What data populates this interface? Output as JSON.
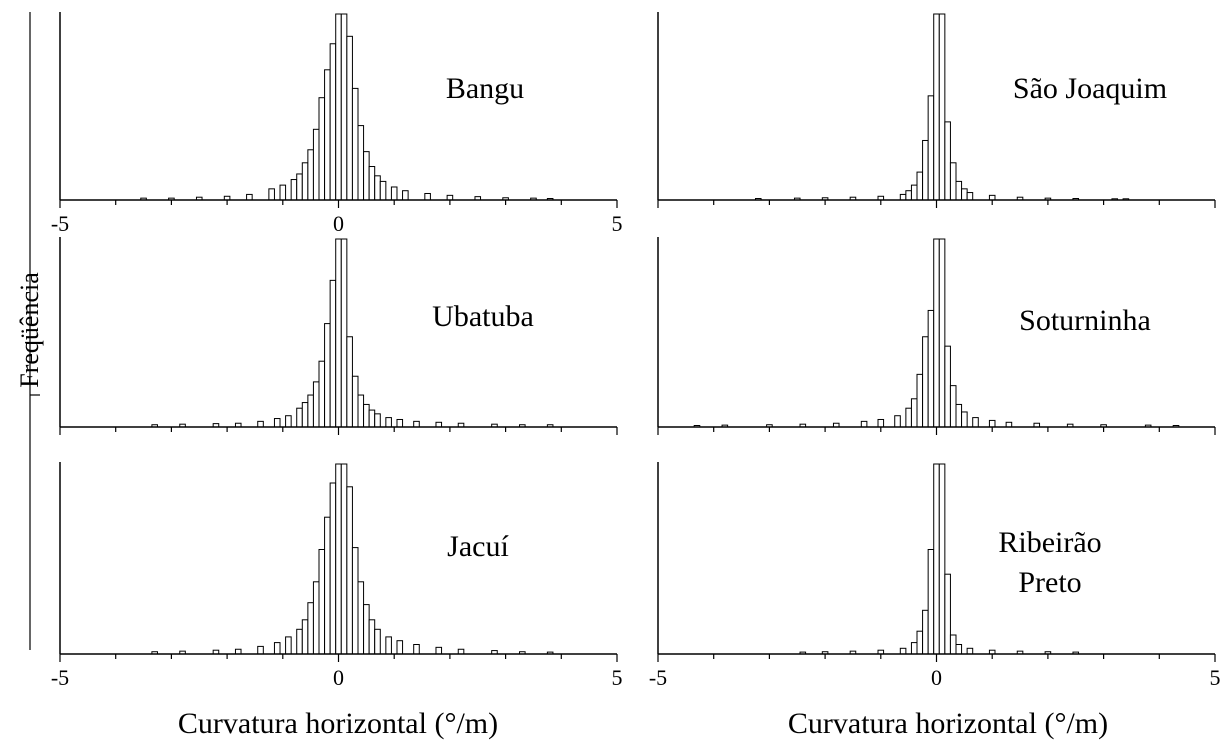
{
  "figure": {
    "ylabel": "Freqüência",
    "xlabel_left": "Curvatura horizontal (°/m)",
    "xlabel_right": "Curvatura horizontal (°/m)",
    "colors": {
      "bar_fill": "#ffffff",
      "bar_stroke": "#000000",
      "axis": "#000000",
      "background": "#ffffff"
    }
  },
  "chart_data": [
    {
      "type": "bar",
      "label_lines": [
        "Bangu"
      ],
      "x_tick_labels": [
        "-5",
        "0",
        "5"
      ],
      "xlim": [
        -5,
        5
      ],
      "ylim": [
        0,
        1
      ],
      "grid": false,
      "bin_width": 0.1,
      "x": [
        -3.5,
        -3.0,
        -2.5,
        -2.0,
        -1.6,
        -1.2,
        -1.0,
        -0.8,
        -0.7,
        -0.6,
        -0.5,
        -0.4,
        -0.3,
        -0.2,
        -0.1,
        0.0,
        0.1,
        0.2,
        0.3,
        0.4,
        0.5,
        0.6,
        0.7,
        0.8,
        1.0,
        1.2,
        1.6,
        2.0,
        2.5,
        3.0,
        3.5,
        3.8
      ],
      "values": [
        0.01,
        0.01,
        0.015,
        0.02,
        0.03,
        0.06,
        0.08,
        0.11,
        0.14,
        0.2,
        0.27,
        0.38,
        0.55,
        0.7,
        0.84,
        1.0,
        1.0,
        0.88,
        0.6,
        0.4,
        0.26,
        0.18,
        0.13,
        0.1,
        0.07,
        0.05,
        0.035,
        0.025,
        0.018,
        0.012,
        0.01,
        0.008
      ]
    },
    {
      "type": "bar",
      "label_lines": [
        "São Joaquim"
      ],
      "x_tick_labels": [],
      "xlim": [
        -5,
        5
      ],
      "ylim": [
        0,
        1
      ],
      "grid": false,
      "bin_width": 0.1,
      "x": [
        -3.2,
        -2.5,
        -2.0,
        -1.5,
        -1.0,
        -0.6,
        -0.5,
        -0.4,
        -0.3,
        -0.2,
        -0.1,
        0.0,
        0.1,
        0.2,
        0.3,
        0.4,
        0.5,
        0.6,
        1.0,
        1.5,
        2.0,
        2.5,
        3.2,
        3.4
      ],
      "values": [
        0.008,
        0.01,
        0.012,
        0.015,
        0.02,
        0.03,
        0.05,
        0.08,
        0.15,
        0.32,
        0.56,
        1.0,
        1.0,
        0.42,
        0.2,
        0.1,
        0.06,
        0.04,
        0.025,
        0.015,
        0.01,
        0.008,
        0.006,
        0.005
      ]
    },
    {
      "type": "bar",
      "label_lines": [
        "Ubatuba"
      ],
      "x_tick_labels": [],
      "xlim": [
        -5,
        5
      ],
      "ylim": [
        0,
        1
      ],
      "grid": false,
      "bin_width": 0.1,
      "x": [
        -3.3,
        -2.8,
        -2.2,
        -1.8,
        -1.4,
        -1.1,
        -0.9,
        -0.7,
        -0.6,
        -0.5,
        -0.4,
        -0.3,
        -0.2,
        -0.1,
        0.0,
        0.1,
        0.2,
        0.3,
        0.4,
        0.5,
        0.6,
        0.7,
        0.9,
        1.1,
        1.4,
        1.8,
        2.2,
        2.8,
        3.3,
        3.8
      ],
      "values": [
        0.012,
        0.015,
        0.018,
        0.02,
        0.03,
        0.045,
        0.06,
        0.1,
        0.13,
        0.17,
        0.24,
        0.35,
        0.55,
        0.78,
        1.0,
        1.0,
        0.48,
        0.27,
        0.17,
        0.12,
        0.09,
        0.07,
        0.05,
        0.04,
        0.03,
        0.025,
        0.02,
        0.015,
        0.012,
        0.012
      ]
    },
    {
      "type": "bar",
      "label_lines": [
        "Soturninha"
      ],
      "x_tick_labels": [],
      "xlim": [
        -5,
        5
      ],
      "ylim": [
        0,
        1
      ],
      "grid": false,
      "bin_width": 0.1,
      "x": [
        -4.3,
        -3.8,
        -3.0,
        -2.4,
        -1.8,
        -1.3,
        -1.0,
        -0.7,
        -0.5,
        -0.4,
        -0.3,
        -0.2,
        -0.1,
        0.0,
        0.1,
        0.2,
        0.3,
        0.4,
        0.5,
        0.7,
        1.0,
        1.3,
        1.8,
        2.4,
        3.0,
        3.8,
        4.3
      ],
      "values": [
        0.008,
        0.01,
        0.012,
        0.015,
        0.02,
        0.03,
        0.04,
        0.06,
        0.1,
        0.15,
        0.28,
        0.48,
        0.62,
        1.0,
        1.0,
        0.43,
        0.22,
        0.12,
        0.08,
        0.05,
        0.035,
        0.025,
        0.02,
        0.015,
        0.012,
        0.01,
        0.008
      ]
    },
    {
      "type": "bar",
      "label_lines": [
        "Jacuí"
      ],
      "x_tick_labels": [
        "-5",
        "0",
        "5"
      ],
      "xlim": [
        -5,
        5
      ],
      "ylim": [
        0,
        1
      ],
      "grid": false,
      "bin_width": 0.1,
      "x": [
        -3.3,
        -2.8,
        -2.2,
        -1.8,
        -1.4,
        -1.1,
        -0.9,
        -0.7,
        -0.6,
        -0.5,
        -0.4,
        -0.3,
        -0.2,
        -0.1,
        0.0,
        0.1,
        0.2,
        0.3,
        0.4,
        0.5,
        0.6,
        0.7,
        0.9,
        1.1,
        1.4,
        1.8,
        2.2,
        2.8,
        3.3,
        3.8
      ],
      "values": [
        0.012,
        0.015,
        0.02,
        0.025,
        0.04,
        0.06,
        0.09,
        0.13,
        0.18,
        0.27,
        0.38,
        0.55,
        0.72,
        0.9,
        1.0,
        1.0,
        0.88,
        0.56,
        0.38,
        0.26,
        0.18,
        0.13,
        0.09,
        0.07,
        0.05,
        0.035,
        0.025,
        0.018,
        0.012,
        0.01
      ]
    },
    {
      "type": "bar",
      "label_lines": [
        "Ribeirão",
        "Preto"
      ],
      "x_tick_labels": [
        "-5",
        "0",
        "5"
      ],
      "xlim": [
        -5,
        5
      ],
      "ylim": [
        0,
        1
      ],
      "grid": false,
      "bin_width": 0.1,
      "x": [
        -2.4,
        -2.0,
        -1.5,
        -1.0,
        -0.6,
        -0.4,
        -0.3,
        -0.2,
        -0.1,
        0.0,
        0.1,
        0.2,
        0.3,
        0.4,
        0.6,
        1.0,
        1.5,
        2.0,
        2.5
      ],
      "values": [
        0.01,
        0.012,
        0.015,
        0.02,
        0.03,
        0.06,
        0.12,
        0.23,
        0.55,
        1.0,
        1.0,
        0.42,
        0.1,
        0.05,
        0.03,
        0.02,
        0.015,
        0.012,
        0.01
      ]
    }
  ]
}
